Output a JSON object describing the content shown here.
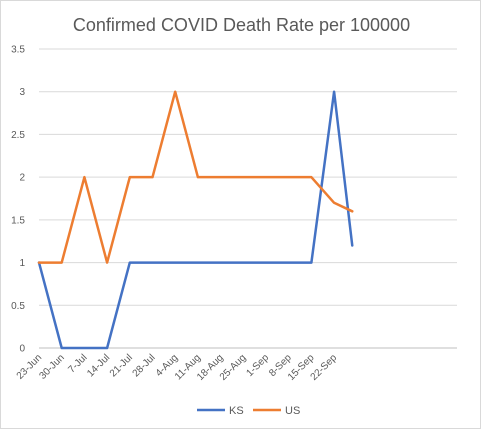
{
  "chart_data": {
    "type": "line",
    "title": "Confirmed COVID Death Rate per 100000",
    "xlabel": "",
    "ylabel": "",
    "ylim": [
      0,
      3.5
    ],
    "y_ticks": [
      "0",
      "0.5",
      "1",
      "1.5",
      "2",
      "2.5",
      "3",
      "3.5"
    ],
    "grid": true,
    "legend_position": "bottom",
    "categories": [
      "23-Jun",
      "30-Jun",
      "7-Jul",
      "14-Jul",
      "21-Jul",
      "28-Jul",
      "4-Aug",
      "11-Aug",
      "18-Aug",
      "25-Aug",
      "1-Sep",
      "8-Sep",
      "15-Sep",
      "22-Sep"
    ],
    "x": [
      0,
      1,
      2,
      3,
      4,
      5,
      6,
      7,
      8,
      9,
      10,
      11,
      12,
      13,
      13.8
    ],
    "series": [
      {
        "name": "KS",
        "color": "#4472c4",
        "values": [
          1,
          0,
          0,
          0,
          1,
          1,
          1,
          1,
          1,
          1,
          1,
          1,
          1,
          3,
          1.2
        ]
      },
      {
        "name": "US",
        "color": "#ed7d31",
        "values": [
          1,
          1,
          2,
          1,
          2,
          2,
          3,
          2,
          2,
          2,
          2,
          2,
          2,
          1.7,
          1.6
        ]
      }
    ]
  }
}
